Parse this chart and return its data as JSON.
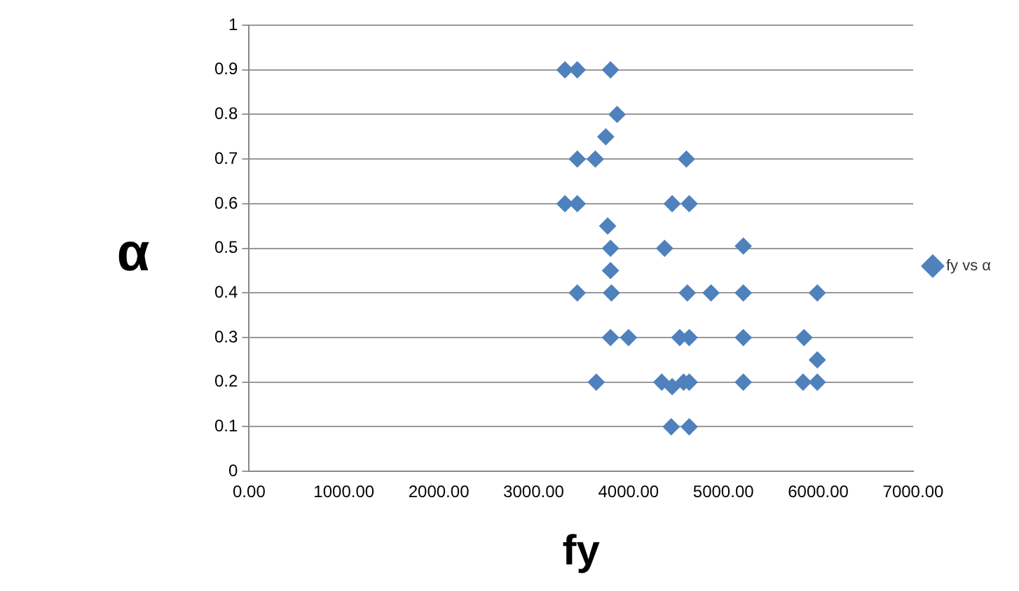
{
  "chart_data": {
    "type": "scatter",
    "xlabel": "fy",
    "ylabel": "α",
    "x": [
      3330,
      3460,
      3810,
      3880,
      3760,
      3460,
      3650,
      4610,
      3330,
      3460,
      4460,
      4640,
      3780,
      3810,
      4380,
      5210,
      3810,
      3460,
      3780,
      3820,
      4620,
      4870,
      5210,
      5990,
      3810,
      4000,
      4540,
      4640,
      5210,
      5850,
      5990,
      3660,
      4350,
      4420,
      4460,
      4580,
      4640,
      5210,
      5840,
      5990,
      4450,
      4640
    ],
    "series": [
      {
        "name": "fy vs α",
        "color": "#4f81bd",
        "values": [
          0.9,
          0.9,
          0.9,
          0.8,
          0.75,
          0.7,
          0.7,
          0.7,
          0.6,
          0.6,
          0.6,
          0.6,
          0.55,
          0.5,
          0.5,
          0.505,
          0.45,
          0.4,
          null,
          0.4,
          0.4,
          0.4,
          0.4,
          0.4,
          0.3,
          0.3,
          0.3,
          0.3,
          0.3,
          0.3,
          0.25,
          0.2,
          0.2,
          null,
          0.19,
          0.2,
          0.2,
          0.2,
          0.2,
          0.2,
          0.1,
          0.1
        ]
      }
    ],
    "xlim": [
      0,
      7000
    ],
    "xticks": [
      {
        "value": 0,
        "label": "0.00"
      },
      {
        "value": 1000,
        "label": "1000.00"
      },
      {
        "value": 2000,
        "label": "2000.00"
      },
      {
        "value": 3000,
        "label": "3000.00"
      },
      {
        "value": 4000,
        "label": "4000.00"
      },
      {
        "value": 5000,
        "label": "5000.00"
      },
      {
        "value": 6000,
        "label": "6000.00"
      },
      {
        "value": 7000,
        "label": "7000.00"
      }
    ],
    "ylim": [
      0,
      1
    ],
    "yticks": [
      0,
      0.1,
      0.2,
      0.3,
      0.4,
      0.5,
      0.6,
      0.7,
      0.8,
      0.9,
      1
    ],
    "grid": "y",
    "legend": "right",
    "marker": "diamond"
  }
}
